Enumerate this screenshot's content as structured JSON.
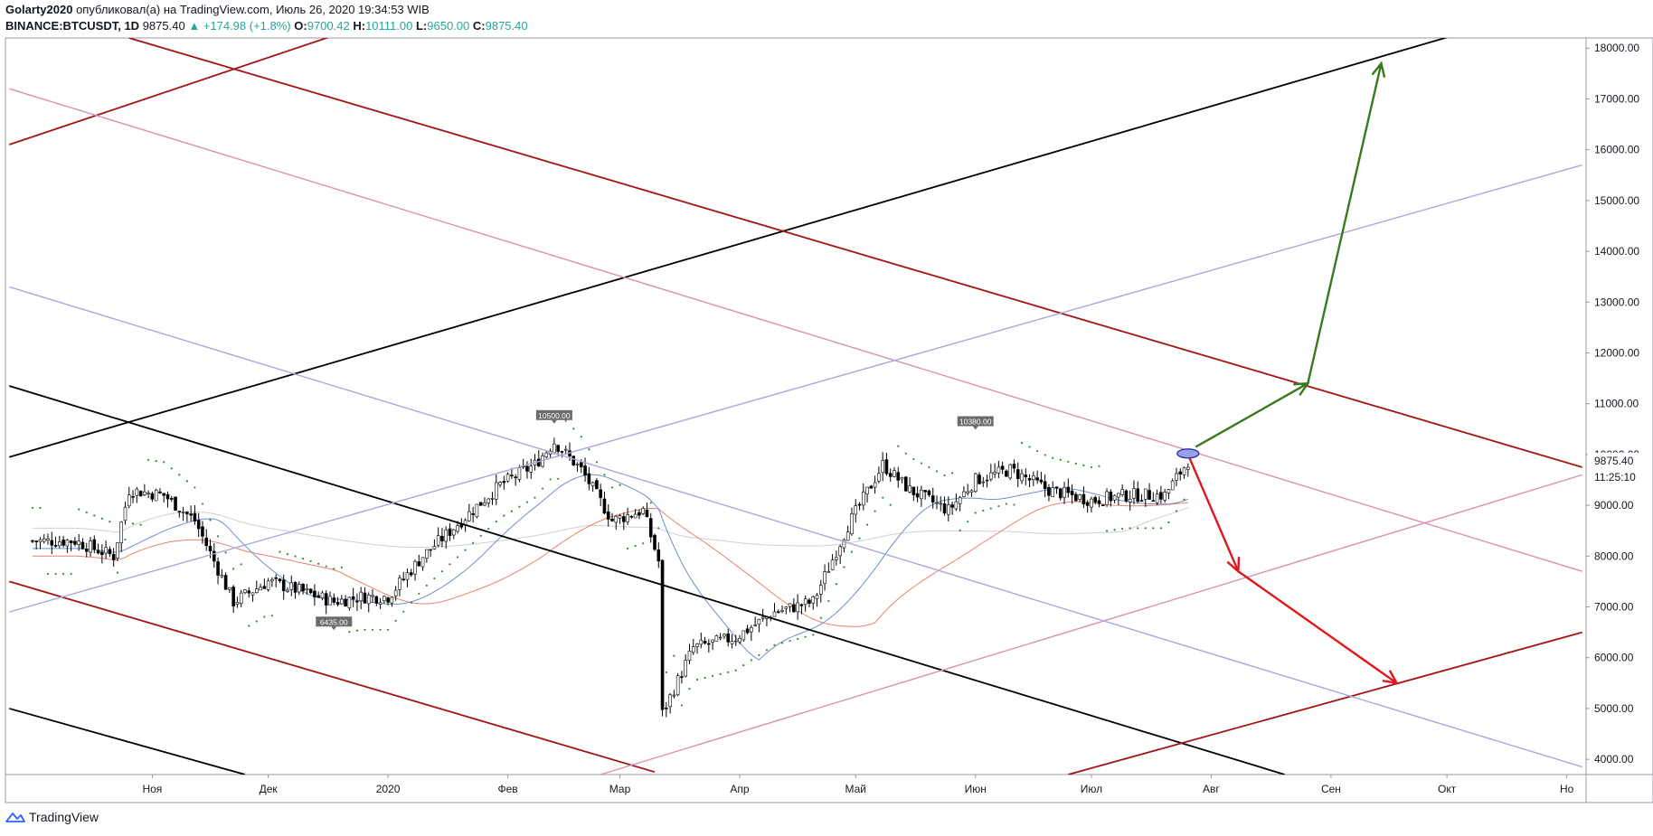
{
  "header": {
    "author": "Golarty2020",
    "published_text": "опубликовал(а) на TradingView.com, Июль 26, 2020 19:34:53 WIB",
    "symbol": "BINANCE:BTCUSDT, 1D",
    "last": "9875.40",
    "change": "▲ +174.98 (+1.8%)",
    "o_label": "O:",
    "o_value": "9700.42",
    "h_label": "H:",
    "h_value": "10111.00",
    "l_label": "L:",
    "l_value": "9650.00",
    "c_label": "C:",
    "c_value": "9875.40"
  },
  "footer": {
    "brand": "TradingView"
  },
  "colors": {
    "up_accent": "#26a69a",
    "candle_up": "#ffffff",
    "candle_down": "#000000",
    "green_arrow": "#3a7a1f",
    "red_arrow": "#e3161b",
    "dark_red_line": "#a31313",
    "pink_line": "#d991b4",
    "lavender_line": "#a8a8d8",
    "black_line": "#000000",
    "psar_dots": "#2e8b2e",
    "ma_blue": "#6f8fc9",
    "ma_red": "#e8826f",
    "ma_grey": "#cfcfcf"
  },
  "chart_data": {
    "type": "candlestick",
    "title": "",
    "x_axis": {
      "type": "date",
      "ticks": [
        {
          "label": "Ноя",
          "date": "2019-11-01"
        },
        {
          "label": "Дек",
          "date": "2019-12-01"
        },
        {
          "label": "2020",
          "date": "2020-01-01"
        },
        {
          "label": "Фев",
          "date": "2020-02-01"
        },
        {
          "label": "Мар",
          "date": "2020-03-01"
        },
        {
          "label": "Апр",
          "date": "2020-04-01"
        },
        {
          "label": "Май",
          "date": "2020-05-01"
        },
        {
          "label": "Июн",
          "date": "2020-06-01"
        },
        {
          "label": "Июл",
          "date": "2020-07-01"
        },
        {
          "label": "Авг",
          "date": "2020-08-01"
        },
        {
          "label": "Сен",
          "date": "2020-09-01"
        },
        {
          "label": "Окт",
          "date": "2020-10-01"
        },
        {
          "label": "Но",
          "date": "2020-11-01"
        }
      ]
    },
    "y_axis": {
      "range": [
        3700,
        18200
      ],
      "ticks": [
        "4000.00",
        "5000.00",
        "6000.00",
        "7000.00",
        "8000.00",
        "9000.00",
        "10000.00",
        "11000.00",
        "12000.00",
        "13000.00",
        "14000.00",
        "15000.00",
        "16000.00",
        "17000.00",
        "18000.00"
      ]
    },
    "price_label": {
      "value": 9875.4,
      "text": "9875.40",
      "countdown": "11:25:10"
    },
    "annotations": [
      {
        "text": "10500.00",
        "date": "2020-02-13",
        "price": 10500
      },
      {
        "text": "10380.00",
        "date": "2020-06-01",
        "price": 10380
      },
      {
        "text": "6435.00",
        "date": "2019-12-18",
        "price": 6435
      }
    ],
    "close_path": [
      [
        "2019-10-01",
        8300
      ],
      [
        "2019-10-12",
        8300
      ],
      [
        "2019-10-22",
        8000
      ],
      [
        "2019-10-26",
        9300
      ],
      [
        "2019-11-04",
        9200
      ],
      [
        "2019-11-12",
        8700
      ],
      [
        "2019-11-22",
        7100
      ],
      [
        "2019-12-01",
        7500
      ],
      [
        "2019-12-10",
        7300
      ],
      [
        "2019-12-18",
        7100
      ],
      [
        "2019-12-25",
        7200
      ],
      [
        "2020-01-01",
        7200
      ],
      [
        "2020-01-10",
        8000
      ],
      [
        "2020-01-20",
        8700
      ],
      [
        "2020-01-30",
        9400
      ],
      [
        "2020-02-08",
        9800
      ],
      [
        "2020-02-13",
        10250
      ],
      [
        "2020-02-20",
        9700
      ],
      [
        "2020-02-28",
        8700
      ],
      [
        "2020-03-07",
        8900
      ],
      [
        "2020-03-11",
        7900
      ],
      [
        "2020-03-12",
        4900
      ],
      [
        "2020-03-20",
        6200
      ],
      [
        "2020-03-31",
        6400
      ],
      [
        "2020-04-10",
        6900
      ],
      [
        "2020-04-20",
        7100
      ],
      [
        "2020-04-29",
        8600
      ],
      [
        "2020-05-08",
        9800
      ],
      [
        "2020-05-15",
        9300
      ],
      [
        "2020-05-25",
        8900
      ],
      [
        "2020-06-01",
        9500
      ],
      [
        "2020-06-10",
        9700
      ],
      [
        "2020-06-20",
        9300
      ],
      [
        "2020-07-01",
        9100
      ],
      [
        "2020-07-10",
        9200
      ],
      [
        "2020-07-20",
        9200
      ],
      [
        "2020-07-26",
        9875
      ]
    ],
    "trend_lines": [
      {
        "color": "black",
        "from": [
          "2019-09-25",
          9950
        ],
        "to": [
          "2020-10-05",
          18300
        ]
      },
      {
        "color": "black",
        "from": [
          "2019-09-25",
          11350
        ],
        "to": [
          "2020-08-20",
          3700
        ]
      },
      {
        "color": "black",
        "from": [
          "2019-09-25",
          5000
        ],
        "to": [
          "2019-11-25",
          3700
        ]
      },
      {
        "color": "dark_red",
        "from": [
          "2019-10-26",
          18200
        ],
        "to": [
          "2020-11-05",
          9750
        ]
      },
      {
        "color": "dark_red",
        "from": [
          "2019-09-25",
          16100
        ],
        "to": [
          "2019-12-20",
          18300
        ]
      },
      {
        "color": "dark_red",
        "from": [
          "2019-09-25",
          7500
        ],
        "to": [
          "2020-03-10",
          3750
        ]
      },
      {
        "color": "dark_red",
        "from": [
          "2020-06-25",
          3700
        ],
        "to": [
          "2020-11-05",
          6500
        ]
      },
      {
        "color": "pink",
        "from": [
          "2019-09-25",
          17200
        ],
        "to": [
          "2020-11-05",
          7700
        ]
      },
      {
        "color": "pink",
        "from": [
          "2020-02-25",
          3700
        ],
        "to": [
          "2020-11-05",
          9600
        ]
      },
      {
        "color": "lavender",
        "from": [
          "2019-09-25",
          13300
        ],
        "to": [
          "2020-11-05",
          3850
        ]
      },
      {
        "color": "lavender",
        "from": [
          "2019-09-25",
          6900
        ],
        "to": [
          "2020-11-05",
          15700
        ]
      }
    ],
    "arrows": [
      {
        "color": "green",
        "points": [
          [
            "2020-07-28",
            10150
          ],
          [
            "2020-08-26",
            11400
          ],
          [
            "2020-09-14",
            17700
          ]
        ]
      },
      {
        "color": "red",
        "points": [
          [
            "2020-07-26",
            10000
          ],
          [
            "2020-08-08",
            7700
          ],
          [
            "2020-09-18",
            5500
          ]
        ]
      }
    ]
  }
}
